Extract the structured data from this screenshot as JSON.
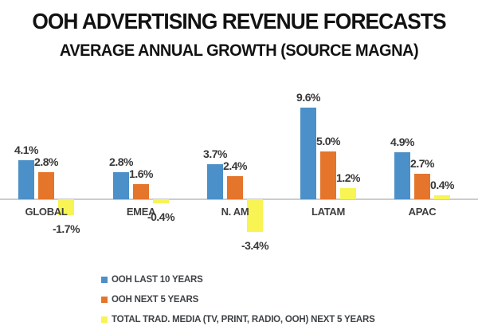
{
  "title": "OOH ADVERTISING REVENUE FORECASTS",
  "subtitle": "AVERAGE ANNUAL GROWTH (SOURCE MAGNA)",
  "colors": {
    "blue": "#4b90c8",
    "orange": "#e4752b",
    "yellow": "#f7f454",
    "axis_line": "#cccccc",
    "title_text": "#121212",
    "label_text": "#383838"
  },
  "chart_data": {
    "type": "bar",
    "categories": [
      "GLOBAL",
      "EMEA",
      "N. AM",
      "LATAM",
      "APAC"
    ],
    "series": [
      {
        "name": "OOH LAST 10 YEARS",
        "color": "#4b90c8",
        "values": [
          4.1,
          2.8,
          3.7,
          9.6,
          4.9
        ],
        "labels": [
          "4.1%",
          "2.8%",
          "3.7%",
          "9.6%",
          "4.9%"
        ]
      },
      {
        "name": "OOH NEXT 5 YEARS",
        "color": "#e4752b",
        "values": [
          2.8,
          1.6,
          2.4,
          5.0,
          2.7
        ],
        "labels": [
          "2.8%",
          "1.6%",
          "2.4%",
          "5.0%",
          "2.7%"
        ]
      },
      {
        "name": "TOTAL TRAD. MEDIA (TV, PRINT, RADIO, OOH) NEXT 5 YEARS",
        "color": "#f7f454",
        "values": [
          -1.7,
          -0.4,
          -3.4,
          1.2,
          0.4
        ],
        "labels": [
          "-1.7%",
          "-0.4%",
          "-3.4%",
          "1.2%",
          "0.4%"
        ]
      }
    ],
    "ylim": [
      -3.4,
      9.6
    ],
    "grid": false,
    "value_labels": true,
    "legend_position": "bottom-left"
  }
}
